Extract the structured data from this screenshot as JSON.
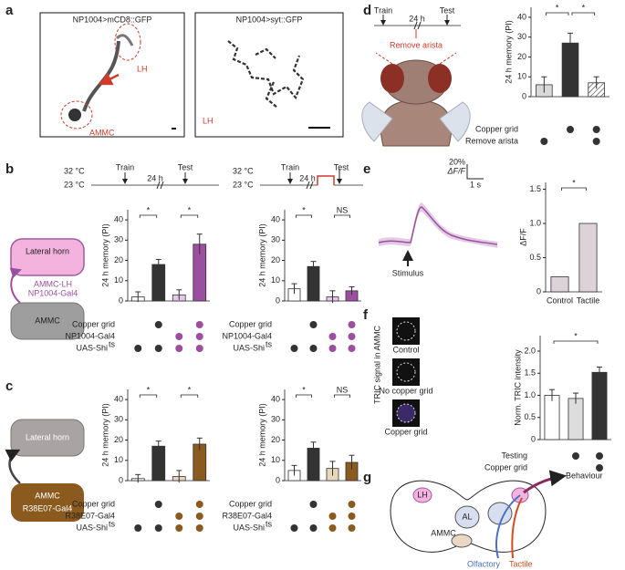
{
  "panels": {
    "a": {
      "letter": "a",
      "image1": {
        "title": "NP1004>mCD8::GFP",
        "lh": "LH",
        "ammc": "AMMC"
      },
      "image2": {
        "title": "NP1004>syt::GFP",
        "lh": "LH"
      }
    },
    "b": {
      "letter": "b",
      "timeline1": {
        "high": "32 °C",
        "low": "23 °C",
        "train": "Train",
        "interval": "24 h",
        "test": "Test"
      },
      "timeline2": {
        "high": "32 °C",
        "low": "23 °C",
        "train": "Train",
        "interval": "24 h",
        "test": "Test"
      },
      "circuit": {
        "top": "Lateral horn",
        "link": "AMMC-LH",
        "driver": "NP1004-Gal4",
        "bottom": "AMMC"
      }
    },
    "c": {
      "letter": "c",
      "circuit": {
        "top": "Lateral horn",
        "bottom": "AMMC",
        "driver": "R38E07-Gal4"
      }
    },
    "d": {
      "letter": "d",
      "timeline": {
        "train": "Train",
        "interval": "24 h",
        "test": "Test",
        "treatment": "Remove arista"
      }
    },
    "e": {
      "letter": "e",
      "scale": {
        "amplitude": "20%",
        "unit": "ΔF/F",
        "time": "1 s"
      },
      "stimulus": "Stimulus"
    },
    "f": {
      "letter": "f",
      "caption": "TRIC signal in AMMC",
      "images": [
        "Control",
        "No copper grid",
        "Copper grid"
      ]
    },
    "g": {
      "letter": "g",
      "labels": {
        "lh": "LH",
        "al": "AL",
        "ammc": "AMMC",
        "behaviour": "Behaviour",
        "olfactory": "Olfactory",
        "tactile": "Tactile"
      }
    }
  },
  "chart_data": [
    {
      "type": "bar",
      "ylabel": "24 h memory (PI)",
      "values": [
        2,
        18,
        3,
        28
      ],
      "errors": [
        2.5,
        2.5,
        2.5,
        5
      ],
      "colors": [
        "#ffffff",
        "#333333",
        "#e8c8ea",
        "#9b4f9e"
      ],
      "ylim": [
        0,
        45
      ],
      "yticks": [
        0,
        10,
        20,
        30,
        40
      ],
      "significance": [
        {
          "between": [
            0,
            1
          ],
          "label": "*"
        },
        {
          "between": [
            2,
            3
          ],
          "label": "*"
        }
      ],
      "dot_colors": [
        "#333333",
        "#333333",
        "#9b4f9e",
        "#9b4f9e"
      ],
      "conditions": [
        {
          "label": "Copper grid",
          "dots": [
            false,
            true,
            false,
            true
          ]
        },
        {
          "label": "NP1004-Gal4",
          "dots": [
            false,
            false,
            true,
            true
          ]
        },
        {
          "label": "UAS-Shi",
          "sup": "ts",
          "dots": [
            true,
            true,
            true,
            true
          ]
        }
      ]
    },
    {
      "type": "bar",
      "ylabel": "24 h memory (PI)",
      "values": [
        6,
        17,
        2,
        5
      ],
      "errors": [
        2.5,
        2.5,
        3,
        2
      ],
      "colors": [
        "#ffffff",
        "#333333",
        "#e8c8ea",
        "#9b4f9e"
      ],
      "ylim": [
        0,
        45
      ],
      "yticks": [
        0,
        10,
        20,
        30,
        40
      ],
      "significance": [
        {
          "between": [
            0,
            1
          ],
          "label": "*"
        },
        {
          "between": [
            2,
            3
          ],
          "label": "NS"
        }
      ],
      "dot_colors": [
        "#333333",
        "#333333",
        "#9b4f9e",
        "#9b4f9e"
      ],
      "conditions": [
        {
          "label": "Copper grid",
          "dots": [
            false,
            true,
            false,
            true
          ]
        },
        {
          "label": "NP1004-Gal4",
          "dots": [
            false,
            false,
            true,
            true
          ]
        },
        {
          "label": "UAS-Shi",
          "sup": "ts",
          "dots": [
            true,
            true,
            true,
            true
          ]
        }
      ]
    },
    {
      "type": "bar",
      "ylabel": "24 h memory (PI)",
      "values": [
        1,
        17,
        2,
        18
      ],
      "errors": [
        2,
        2.5,
        3,
        3
      ],
      "colors": [
        "#ffffff",
        "#333333",
        "#e8d6bd",
        "#8b5a1e"
      ],
      "ylim": [
        0,
        45
      ],
      "yticks": [
        0,
        10,
        20,
        30,
        40
      ],
      "significance": [
        {
          "between": [
            0,
            1
          ],
          "label": "*"
        },
        {
          "between": [
            2,
            3
          ],
          "label": "*"
        }
      ],
      "dot_colors": [
        "#333333",
        "#333333",
        "#8b5a1e",
        "#8b5a1e"
      ],
      "conditions": [
        {
          "label": "Copper grid",
          "dots": [
            false,
            true,
            false,
            true
          ]
        },
        {
          "label": "R38E07-Gal4",
          "dots": [
            false,
            false,
            true,
            true
          ]
        },
        {
          "label": "UAS-Shi",
          "sup": "ts",
          "dots": [
            true,
            true,
            true,
            true
          ]
        }
      ]
    },
    {
      "type": "bar",
      "ylabel": "24 h memory (PI)",
      "values": [
        5,
        16,
        6,
        9
      ],
      "errors": [
        2.5,
        3,
        3.5,
        3.5
      ],
      "colors": [
        "#ffffff",
        "#333333",
        "#e8d6bd",
        "#8b5a1e"
      ],
      "ylim": [
        0,
        45
      ],
      "yticks": [
        0,
        10,
        20,
        30,
        40
      ],
      "significance": [
        {
          "between": [
            0,
            1
          ],
          "label": "*"
        },
        {
          "between": [
            2,
            3
          ],
          "label": "NS"
        }
      ],
      "dot_colors": [
        "#333333",
        "#333333",
        "#8b5a1e",
        "#8b5a1e"
      ],
      "conditions": [
        {
          "label": "Copper grid",
          "dots": [
            false,
            true,
            false,
            true
          ]
        },
        {
          "label": "R38E07-Gal4",
          "dots": [
            false,
            false,
            true,
            true
          ]
        },
        {
          "label": "UAS-Shi",
          "sup": "ts",
          "dots": [
            true,
            true,
            true,
            true
          ]
        }
      ]
    },
    {
      "type": "bar",
      "ylabel": "24 h memory (PI)",
      "values": [
        6,
        27,
        7
      ],
      "errors": [
        4,
        5,
        3
      ],
      "colors": [
        "#d9d9d9",
        "#333333",
        "#ffffff"
      ],
      "hatched": [
        false,
        false,
        true
      ],
      "ylim": [
        0,
        45
      ],
      "yticks": [
        0,
        10,
        20,
        30,
        40
      ],
      "significance": [
        {
          "between": [
            0,
            1
          ],
          "label": "*"
        },
        {
          "between": [
            1,
            2
          ],
          "label": "*"
        }
      ],
      "dot_colors": [
        "#333333",
        "#333333",
        "#333333"
      ],
      "conditions": [
        {
          "label": "Copper grid",
          "dots": [
            false,
            true,
            true
          ]
        },
        {
          "label": "Remove arista",
          "dots": [
            true,
            false,
            true
          ]
        }
      ]
    },
    {
      "type": "bar",
      "ylabel": "ΔF/F",
      "categories": [
        "Control",
        "Tactile"
      ],
      "values": [
        0.22,
        1.0
      ],
      "colors": [
        "#dcd2d8",
        "#dcd2d8"
      ],
      "ylim": [
        0,
        1.6
      ],
      "yticks": [
        0,
        0.5,
        {
          "value": 1,
          "label": "1.0"
        },
        1.5
      ],
      "significance": [
        {
          "between": [
            0,
            1
          ],
          "label": "*"
        }
      ]
    },
    {
      "type": "bar",
      "ylabel": "Norm. TRIC intensity",
      "values": [
        1.0,
        0.93,
        1.52
      ],
      "errors": [
        0.13,
        0.12,
        0.12
      ],
      "colors": [
        "#ffffff",
        "#dddddd",
        "#333333"
      ],
      "ylim": [
        0,
        2.35
      ],
      "yticks": [
        0,
        0.5,
        {
          "value": 1,
          "label": "1.0"
        },
        1.5,
        {
          "value": 2,
          "label": "2.0"
        }
      ],
      "significance": [
        {
          "between": [
            0,
            2
          ],
          "label": "*"
        }
      ],
      "dot_colors": [
        "#333333",
        "#333333",
        "#333333"
      ],
      "conditions": [
        {
          "label": "Testing",
          "dots": [
            false,
            true,
            true
          ]
        },
        {
          "label": "Copper grid",
          "dots": [
            false,
            false,
            true
          ]
        }
      ]
    }
  ]
}
